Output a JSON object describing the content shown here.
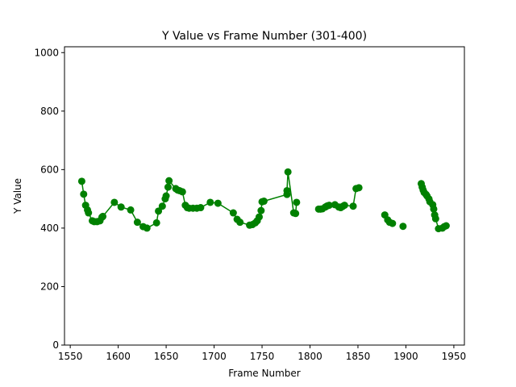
{
  "chart_data": {
    "type": "line",
    "title": "Y Value vs Frame Number (301-400)",
    "xlabel": "Frame Number",
    "ylabel": "Y Value",
    "xlim": [
      1544,
      1961
    ],
    "ylim": [
      0,
      1020
    ],
    "xticks": [
      1550,
      1600,
      1650,
      1700,
      1750,
      1800,
      1850,
      1900,
      1950
    ],
    "yticks": [
      0,
      200,
      400,
      600,
      800,
      1000
    ],
    "grid": false,
    "colors": {
      "series": "#008000"
    },
    "series": [
      {
        "segments": [
          [
            [
              1562,
              560
            ],
            [
              1564,
              516
            ],
            [
              1566,
              478
            ],
            [
              1568,
              462
            ],
            [
              1569,
              452
            ],
            [
              1573,
              425
            ],
            [
              1575,
              422
            ],
            [
              1578,
              422
            ],
            [
              1581,
              425
            ],
            [
              1583,
              437
            ],
            [
              1584,
              440
            ],
            [
              1596,
              488
            ],
            [
              1603,
              472
            ],
            [
              1613,
              462
            ],
            [
              1620,
              420
            ],
            [
              1626,
              405
            ],
            [
              1630,
              400
            ],
            [
              1640,
              418
            ],
            [
              1642,
              458
            ],
            [
              1646,
              475
            ],
            [
              1649,
              500
            ],
            [
              1650,
              510
            ],
            [
              1652,
              540
            ],
            [
              1653,
              562
            ],
            [
              1660,
              535
            ],
            [
              1662,
              530
            ],
            [
              1664,
              528
            ],
            [
              1667,
              524
            ],
            [
              1670,
              478
            ],
            [
              1672,
              470
            ],
            [
              1674,
              468
            ],
            [
              1678,
              468
            ],
            [
              1682,
              468
            ],
            [
              1686,
              470
            ],
            [
              1696,
              488
            ],
            [
              1704,
              485
            ],
            [
              1720,
              452
            ],
            [
              1724,
              430
            ],
            [
              1727,
              420
            ],
            [
              1737,
              410
            ],
            [
              1740,
              412
            ],
            [
              1743,
              418
            ],
            [
              1745,
              425
            ],
            [
              1747,
              438
            ],
            [
              1749,
              460
            ],
            [
              1750,
              490
            ],
            [
              1752,
              492
            ],
            [
              1776,
              515
            ],
            [
              1776,
              528
            ],
            [
              1777,
              592
            ],
            [
              1783,
              452
            ],
            [
              1785,
              450
            ],
            [
              1786,
              488
            ]
          ],
          [
            [
              1809,
              465
            ],
            [
              1811,
              465
            ],
            [
              1813,
              466
            ],
            [
              1816,
              472
            ],
            [
              1818,
              476
            ],
            [
              1820,
              478
            ],
            [
              1826,
              480
            ],
            [
              1830,
              472
            ],
            [
              1832,
              470
            ],
            [
              1834,
              474
            ],
            [
              1836,
              478
            ],
            [
              1845,
              475
            ],
            [
              1848,
              535
            ],
            [
              1851,
              538
            ]
          ],
          [
            [
              1878,
              445
            ],
            [
              1881,
              428
            ],
            [
              1883,
              420
            ],
            [
              1886,
              416
            ]
          ],
          [
            [
              1897,
              406
            ]
          ],
          [
            [
              1916,
              552
            ],
            [
              1917,
              540
            ],
            [
              1918,
              530
            ],
            [
              1919,
              522
            ],
            [
              1921,
              515
            ],
            [
              1922,
              510
            ],
            [
              1924,
              500
            ],
            [
              1925,
              490
            ],
            [
              1928,
              480
            ],
            [
              1929,
              465
            ],
            [
              1930,
              445
            ],
            [
              1931,
              432
            ],
            [
              1934,
              398
            ],
            [
              1938,
              400
            ],
            [
              1940,
              405
            ],
            [
              1942,
              408
            ]
          ]
        ]
      }
    ]
  }
}
